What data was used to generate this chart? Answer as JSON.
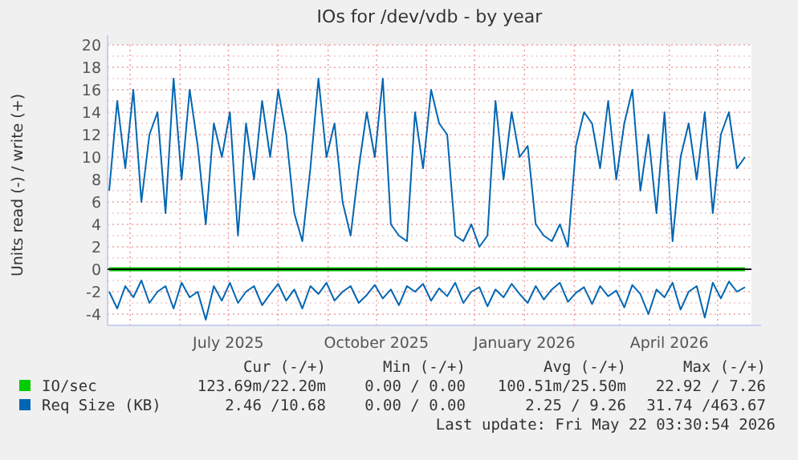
{
  "chart_data": {
    "type": "line",
    "title": "IOs for /dev/vdb - by year",
    "ylabel": "Units read (-) / write (+)",
    "x": [
      "2025-04-18",
      "2025-04-23",
      "2025-04-28",
      "2025-05-03",
      "2025-05-08",
      "2025-05-13",
      "2025-05-18",
      "2025-05-23",
      "2025-05-28",
      "2025-06-02",
      "2025-06-07",
      "2025-06-12",
      "2025-06-17",
      "2025-06-22",
      "2025-06-27",
      "2025-07-02",
      "2025-07-07",
      "2025-07-12",
      "2025-07-17",
      "2025-07-22",
      "2025-07-27",
      "2025-08-01",
      "2025-08-06",
      "2025-08-11",
      "2025-08-16",
      "2025-08-21",
      "2025-08-26",
      "2025-08-31",
      "2025-09-05",
      "2025-09-10",
      "2025-09-15",
      "2025-09-20",
      "2025-09-25",
      "2025-09-30",
      "2025-10-05",
      "2025-10-10",
      "2025-10-15",
      "2025-10-20",
      "2025-10-25",
      "2025-10-30",
      "2025-11-04",
      "2025-11-09",
      "2025-11-14",
      "2025-11-19",
      "2025-11-24",
      "2025-11-29",
      "2025-12-04",
      "2025-12-09",
      "2025-12-14",
      "2025-12-19",
      "2025-12-24",
      "2025-12-29",
      "2026-01-03",
      "2026-01-08",
      "2026-01-13",
      "2026-01-18",
      "2026-01-23",
      "2026-01-28",
      "2026-02-02",
      "2026-02-07",
      "2026-02-12",
      "2026-02-17",
      "2026-02-22",
      "2026-02-27",
      "2026-03-04",
      "2026-03-09",
      "2026-03-14",
      "2026-03-19",
      "2026-03-24",
      "2026-03-29",
      "2026-04-03",
      "2026-04-08",
      "2026-04-13",
      "2026-04-18",
      "2026-04-23",
      "2026-04-28",
      "2026-05-03",
      "2026-05-08",
      "2026-05-13",
      "2026-05-18"
    ],
    "series": [
      {
        "color": "#00cc00",
        "x": [
          "2025-04-18",
          "2025-10-01",
          "2026-05-18"
        ],
        "values": [
          -0.1,
          -0.1,
          -0.1
        ]
      },
      {
        "name": "IO/sec",
        "color": "#00cc00",
        "x": [
          "2025-04-18",
          "2025-10-01",
          "2026-05-18"
        ],
        "values": [
          0.1,
          0.1,
          0.1
        ]
      },
      {
        "color": "#0066b3",
        "values": [
          -2,
          -3.5,
          -1.5,
          -2.5,
          -1,
          -3,
          -2,
          -1.5,
          -3.5,
          -1.2,
          -2.5,
          -2,
          -4.5,
          -1.5,
          -2.8,
          -1.2,
          -3,
          -2,
          -1.5,
          -3.2,
          -2.2,
          -1.3,
          -2.8,
          -1.8,
          -3.5,
          -1.5,
          -2.2,
          -1.2,
          -2.8,
          -2,
          -1.5,
          -3,
          -2.3,
          -1.4,
          -2.6,
          -1.8,
          -3.2,
          -1.5,
          -2,
          -1.3,
          -2.8,
          -1.7,
          -2.4,
          -1.2,
          -3,
          -2,
          -1.6,
          -3.3,
          -1.8,
          -2.5,
          -1.3,
          -2.2,
          -3,
          -1.5,
          -2.7,
          -1.8,
          -1.2,
          -2.9,
          -2.1,
          -1.6,
          -3.1,
          -1.5,
          -2.4,
          -1.9,
          -3.4,
          -1.4,
          -2.2,
          -4,
          -1.8,
          -2.5,
          -1.2,
          -3.6,
          -2,
          -1.5,
          -4.3,
          -1.2,
          -2.6,
          -1.1,
          -2,
          -1.6
        ]
      },
      {
        "name": "Req Size (KB)",
        "color": "#0066b3",
        "values": [
          7,
          15,
          9,
          16,
          6,
          12,
          14,
          5,
          17,
          8,
          16,
          11,
          4,
          13,
          10,
          14,
          3,
          13,
          8,
          15,
          10,
          16,
          12,
          5,
          2.5,
          9,
          17,
          10,
          13,
          6,
          3,
          9,
          14,
          10,
          17,
          4,
          3,
          2.5,
          14,
          9,
          16,
          13,
          12,
          3,
          2.5,
          4,
          2,
          3,
          15,
          8,
          14,
          10,
          11,
          4,
          3,
          2.5,
          4,
          2,
          11,
          14,
          13,
          9,
          15,
          8,
          13,
          16,
          7,
          12,
          5,
          14,
          2.5,
          10,
          13,
          8,
          14,
          5,
          12,
          14,
          9,
          10
        ]
      }
    ],
    "xlim": [
      "2025-04-17",
      "2026-05-22"
    ],
    "xticks": [
      {
        "value": "2025-05-01",
        "label": null
      },
      {
        "value": "2025-06-01",
        "label": null
      },
      {
        "value": "2025-07-01",
        "label": "July 2025"
      },
      {
        "value": "2025-08-01",
        "label": null
      },
      {
        "value": "2025-09-01",
        "label": null
      },
      {
        "value": "2025-10-01",
        "label": "October 2025"
      },
      {
        "value": "2025-11-01",
        "label": null
      },
      {
        "value": "2025-12-01",
        "label": null
      },
      {
        "value": "2026-01-01",
        "label": "January 2026"
      },
      {
        "value": "2026-02-01",
        "label": null
      },
      {
        "value": "2026-03-01",
        "label": null
      },
      {
        "value": "2026-04-01",
        "label": "April 2026"
      },
      {
        "value": "2026-05-01",
        "label": null
      }
    ],
    "ylim": [
      -5,
      20
    ],
    "yticks": [
      -4,
      {
        "value": -3,
        "label": null
      },
      -2,
      {
        "value": -1,
        "label": null
      },
      0,
      {
        "value": 1,
        "label": null
      },
      2,
      {
        "value": 3,
        "label": null
      },
      4,
      {
        "value": 5,
        "label": null
      },
      6,
      {
        "value": 7,
        "label": null
      },
      8,
      {
        "value": 9,
        "label": null
      },
      10,
      {
        "value": 11,
        "label": null
      },
      12,
      {
        "value": 13,
        "label": null
      },
      14,
      {
        "value": 15,
        "label": null
      },
      16,
      {
        "value": 17,
        "label": null
      },
      18,
      {
        "value": 19,
        "label": null
      },
      20
    ],
    "grid": true,
    "legend": "bottom",
    "line_style": "solid",
    "ref_lines": [
      {
        "axis": "y",
        "value": 0,
        "color": "#000000"
      }
    ],
    "annotations": [
      "Cur (-/+)",
      "Min (-/+)",
      "Avg (-/+)",
      "Max (-/+)",
      "123.69m/22.20m",
      "0.00 / 0.00",
      "100.51m/25.50m",
      "22.92 / 7.26",
      "2.46 /10.68",
      "0.00 / 0.00",
      "2.25 / 9.26",
      "31.74 /463.67",
      "Last update: Fri May 22 03:30:54 2026"
    ]
  }
}
